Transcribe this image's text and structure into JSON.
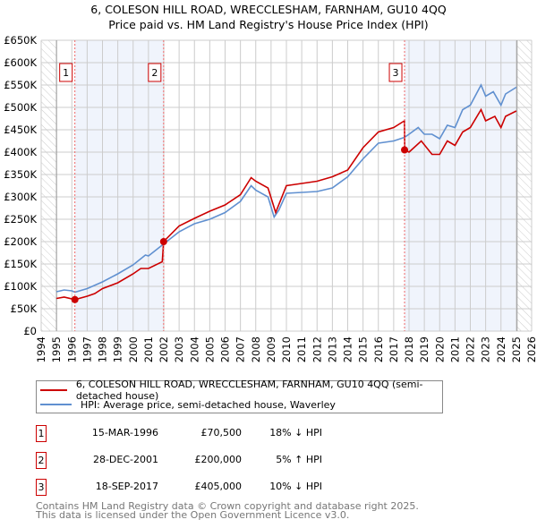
{
  "chart_data": {
    "type": "line",
    "title": "6, COLESON HILL ROAD, WRECCLESHAM, FARNHAM, GU10 4QQ",
    "subtitle": "Price paid vs. HM Land Registry's House Price Index (HPI)",
    "xlim": [
      1994,
      2026
    ],
    "ylim": [
      0,
      650000
    ],
    "x_ticks": [
      "1994",
      "1995",
      "1996",
      "1997",
      "1998",
      "1999",
      "2000",
      "2001",
      "2002",
      "2003",
      "2004",
      "2005",
      "2006",
      "2007",
      "2008",
      "2009",
      "2010",
      "2011",
      "2012",
      "2013",
      "2014",
      "2015",
      "2016",
      "2017",
      "2018",
      "2019",
      "2020",
      "2021",
      "2022",
      "2023",
      "2024",
      "2025",
      "2026"
    ],
    "y_ticks": [
      {
        "v": 0,
        "l": "£0"
      },
      {
        "v": 50000,
        "l": "£50K"
      },
      {
        "v": 100000,
        "l": "£100K"
      },
      {
        "v": 150000,
        "l": "£150K"
      },
      {
        "v": 200000,
        "l": "£200K"
      },
      {
        "v": 250000,
        "l": "£250K"
      },
      {
        "v": 300000,
        "l": "£300K"
      },
      {
        "v": 350000,
        "l": "£350K"
      },
      {
        "v": 400000,
        "l": "£400K"
      },
      {
        "v": 450000,
        "l": "£450K"
      },
      {
        "v": 500000,
        "l": "£500K"
      },
      {
        "v": 550000,
        "l": "£550K"
      },
      {
        "v": 600000,
        "l": "£600K"
      },
      {
        "v": 650000,
        "l": "£650K"
      }
    ],
    "grid": true,
    "hatched_ranges": [
      [
        1994,
        1995
      ],
      [
        2025.05,
        2026
      ]
    ],
    "shaded_ranges": [
      [
        1996.2,
        2001.99
      ],
      [
        2017.71,
        2025.05
      ]
    ],
    "series": [
      {
        "name": "6, COLESON HILL ROAD, WRECCLESHAM, FARNHAM, GU10 4QQ (semi-detached house)",
        "color": "#cc0000",
        "x": [
          1995,
          1995.5,
          1996.2,
          1997,
          1997.5,
          1998,
          1999,
          2000,
          2000.5,
          2001,
          2001.9,
          2001.99,
          2003,
          2004,
          2005,
          2006,
          2007,
          2007.7,
          2008,
          2008.8,
          2009.3,
          2010,
          2011,
          2012,
          2013,
          2014,
          2015,
          2016,
          2017,
          2017.7,
          2017.72,
          2018,
          2018.8,
          2019.5,
          2020,
          2020.5,
          2021,
          2021.5,
          2022,
          2022.7,
          2023,
          2023.6,
          2024,
          2024.3,
          2025
        ],
        "y": [
          73000,
          76000,
          70500,
          78000,
          84000,
          95000,
          108000,
          128000,
          140000,
          140000,
          155000,
          200000,
          235000,
          252000,
          268000,
          282000,
          305000,
          343000,
          335000,
          320000,
          265000,
          325000,
          330000,
          335000,
          345000,
          360000,
          410000,
          445000,
          455000,
          470000,
          405000,
          400000,
          425000,
          395000,
          395000,
          425000,
          415000,
          445000,
          455000,
          495000,
          470000,
          480000,
          455000,
          480000,
          492000
        ]
      },
      {
        "name": "HPI: Average price, semi-detached house, Waverley",
        "color": "#6090d0",
        "x": [
          1995,
          1995.5,
          1996,
          1996.2,
          1997,
          1998,
          1999,
          2000,
          2000.8,
          2001,
          2002,
          2003,
          2004,
          2005,
          2006,
          2007,
          2007.7,
          2008,
          2008.8,
          2009.2,
          2009.5,
          2010,
          2011,
          2012,
          2013,
          2014,
          2015,
          2016,
          2017,
          2017.7,
          2018,
          2018.6,
          2019,
          2019.5,
          2020,
          2020.5,
          2021,
          2021.5,
          2022,
          2022.7,
          2023,
          2023.5,
          2024,
          2024.3,
          2025
        ],
        "y": [
          88000,
          92000,
          90000,
          87000,
          95000,
          110000,
          128000,
          148000,
          170000,
          168000,
          195000,
          222000,
          240000,
          250000,
          265000,
          290000,
          325000,
          315000,
          300000,
          255000,
          270000,
          308000,
          310000,
          312000,
          320000,
          345000,
          385000,
          420000,
          425000,
          433000,
          440000,
          455000,
          440000,
          440000,
          430000,
          460000,
          455000,
          495000,
          505000,
          550000,
          525000,
          535000,
          505000,
          530000,
          545000
        ]
      }
    ],
    "markers": [
      {
        "label": "1",
        "x": 1996.2,
        "y": 70500
      },
      {
        "label": "2",
        "x": 2001.99,
        "y": 200000
      },
      {
        "label": "3",
        "x": 2017.71,
        "y": 405000
      }
    ]
  },
  "legend": [
    "6, COLESON HILL ROAD, WRECCLESHAM, FARNHAM, GU10 4QQ (semi-detached house)",
    "HPI: Average price, semi-detached house, Waverley"
  ],
  "transactions": [
    {
      "n": "1",
      "date": "15-MAR-1996",
      "price": "£70,500",
      "hpi": "18% ↓ HPI"
    },
    {
      "n": "2",
      "date": "28-DEC-2001",
      "price": "£200,000",
      "hpi": "5% ↑ HPI"
    },
    {
      "n": "3",
      "date": "18-SEP-2017",
      "price": "£405,000",
      "hpi": "10% ↓ HPI"
    }
  ],
  "footer": [
    "Contains HM Land Registry data © Crown copyright and database right 2025.",
    "This data is licensed under the Open Government Licence v3.0."
  ]
}
